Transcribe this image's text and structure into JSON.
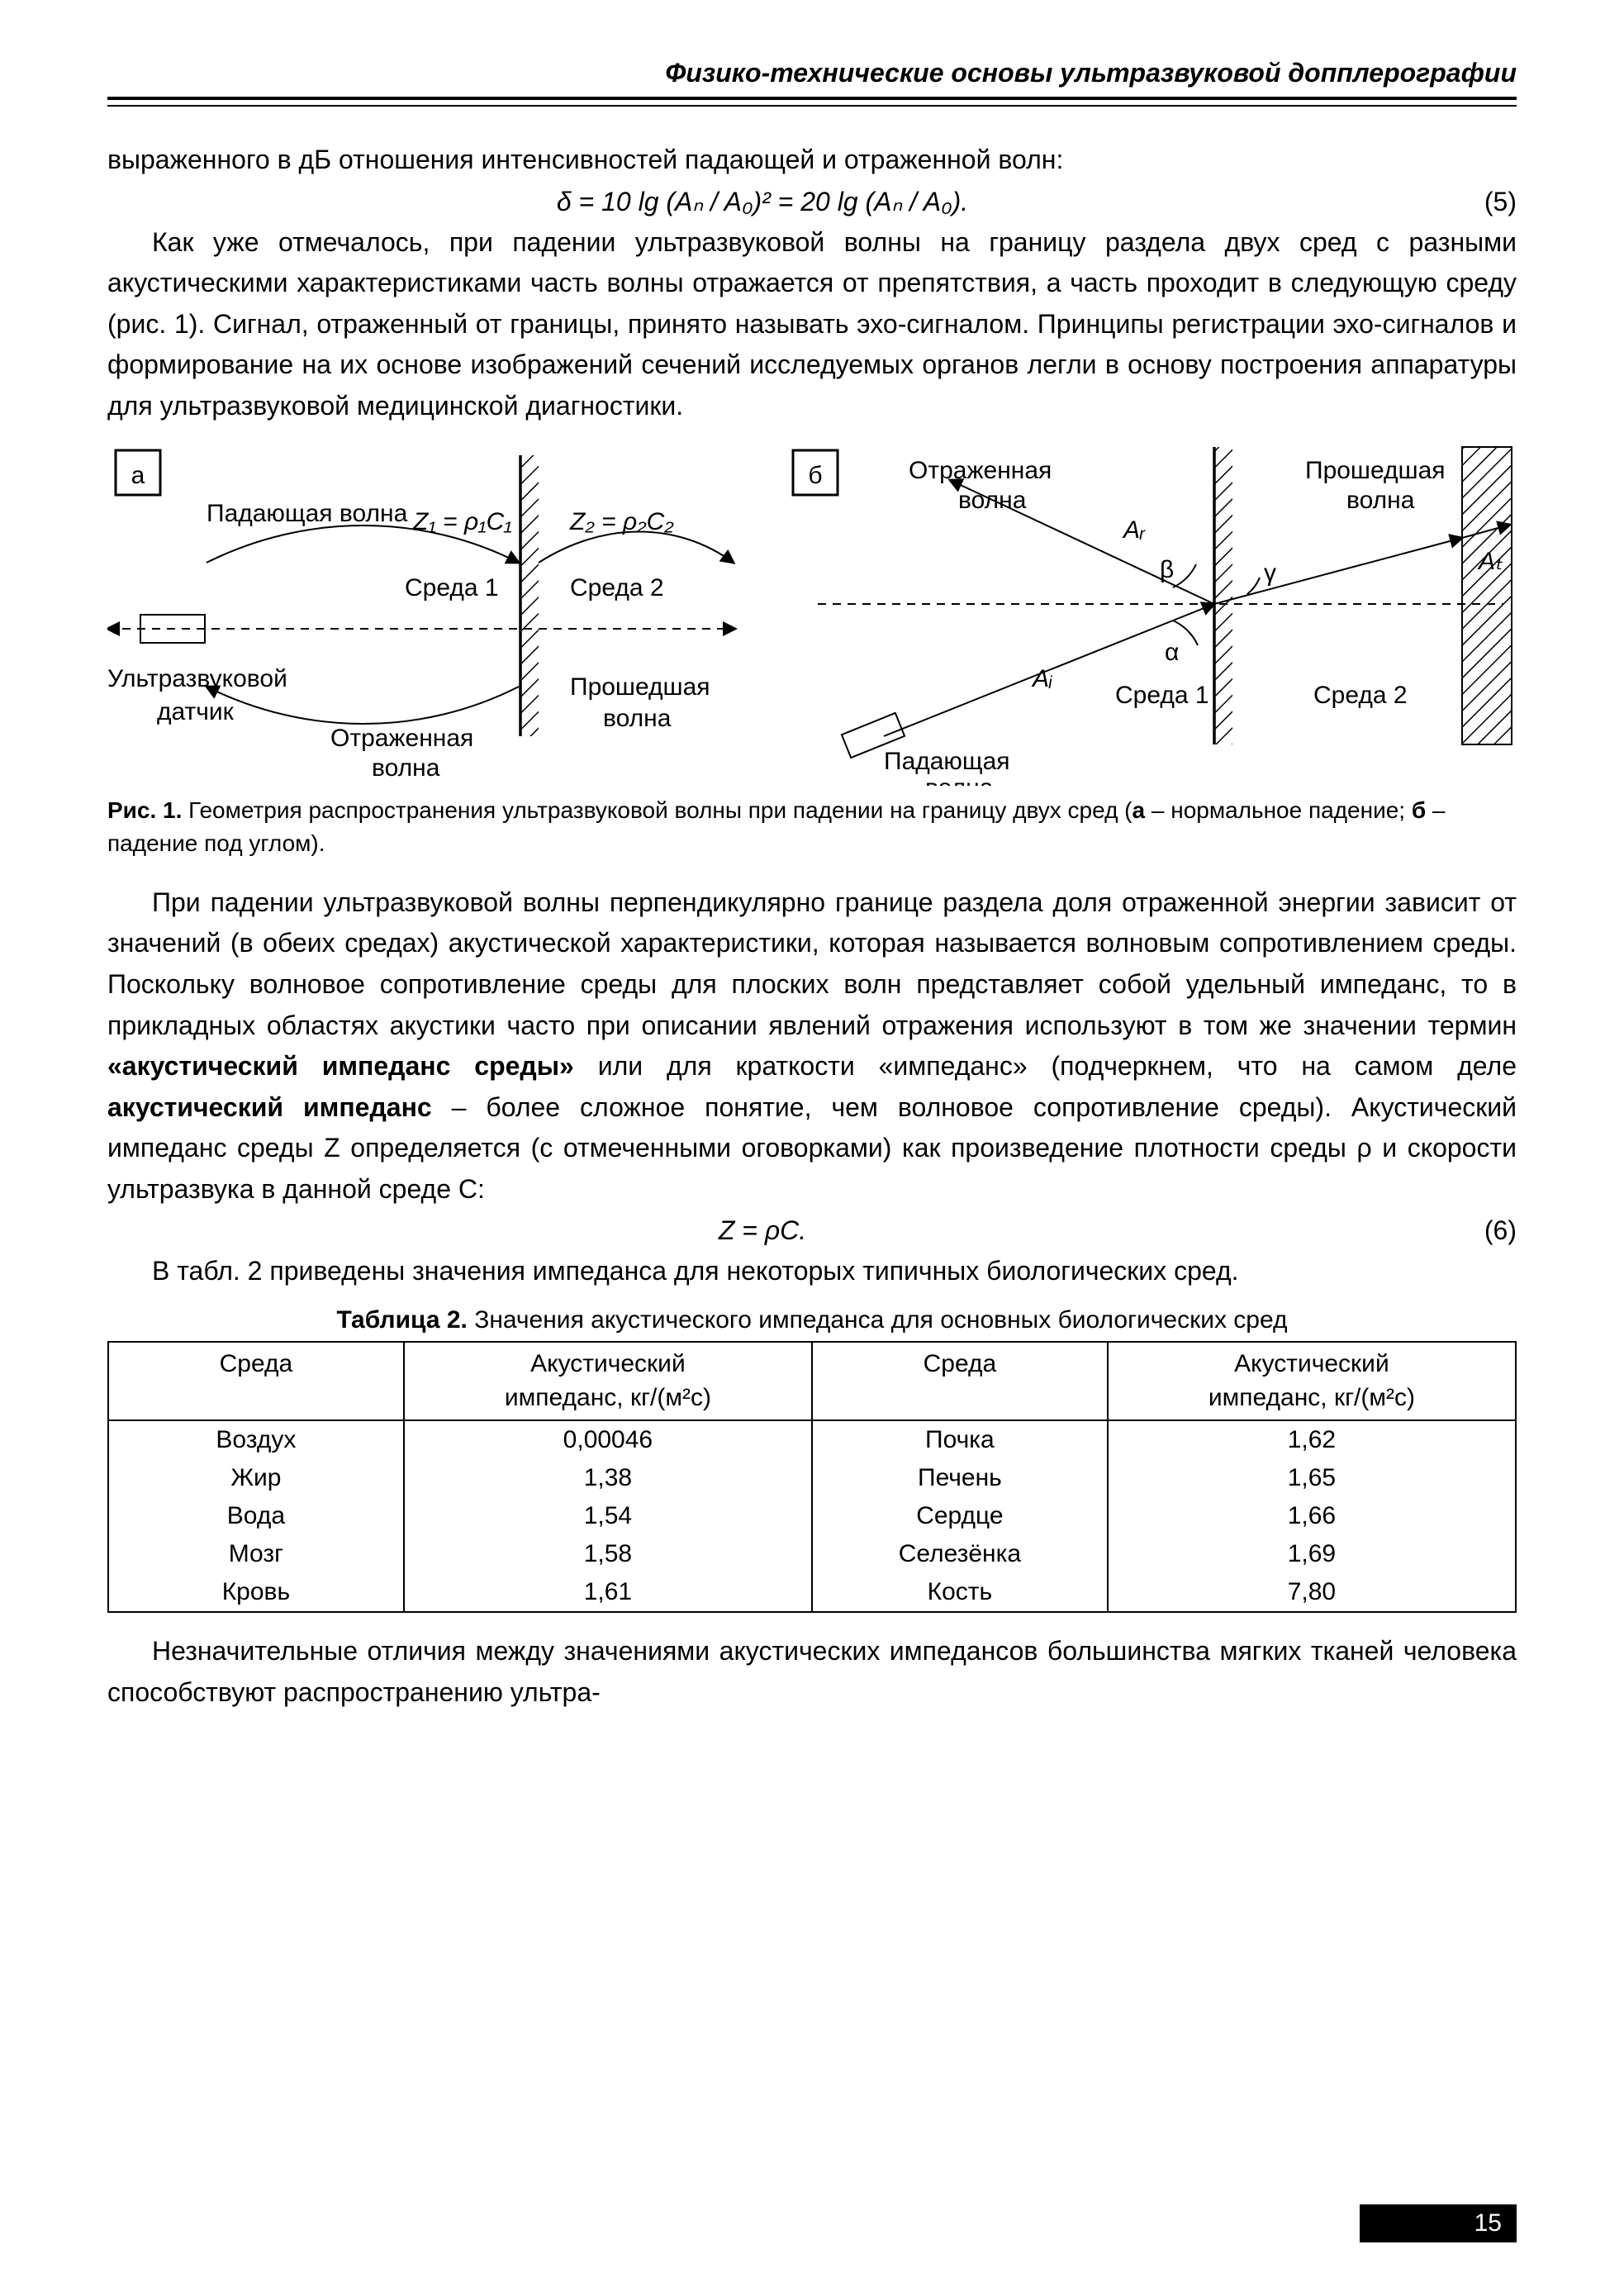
{
  "header": {
    "running_title": "Физико-технические основы ультразвуковой допплерографии"
  },
  "page_number": "15",
  "para1": "выраженного в дБ отношения интенсивностей падающей и отраженной волн:",
  "eq5": {
    "text": "δ = 10 lg (Aₙ / A₀)² = 20 lg (Aₙ / A₀).",
    "num": "(5)"
  },
  "para2": "Как уже отмечалось, при падении ультразвуковой волны на границу раздела двух сред с разными акустическими характеристиками часть волны отражается от препятствия, а часть проходит в следующую среду (рис. 1). Сигнал, отраженный от границы, принято называть эхо-сигналом. Принципы регистрации эхо-сигналов и формирование на их основе изображений сечений исследуемых органов легли в основу построения аппаратуры для ультразвуковой медицинской диагностики.",
  "figure1": {
    "panel_a": "а",
    "panel_b": "б",
    "labels": {
      "incident": "Падающая волна",
      "reflected": "Отраженная\nволна",
      "transmitted": "Прошедшая\nволна",
      "transducer": "Ультразвуковой\nдатчик",
      "medium1": "Среда 1",
      "medium2": "Среда 2",
      "z1": "Z₁ = ρ₁C₁",
      "z2": "Z₂ = ρ₂C₂",
      "Ai": "Aᵢ",
      "Ar": "Aᵣ",
      "At": "Aₜ",
      "alpha": "α",
      "beta": "β",
      "gamma": "γ"
    },
    "caption_strong": "Рис. 1.",
    "caption_rest": " Геометрия распространения ультразвуковой волны при падении на границу двух сред (",
    "caption_a": "а",
    "caption_mid": " – нормальное падение; ",
    "caption_b": "б",
    "caption_end": " – падение под углом)."
  },
  "para3": "При падении ультразвуковой волны перпендикулярно границе раздела доля отраженной энергии зависит от значений (в обеих средах) акустической характеристики, которая называется волновым сопротивлением среды. Поскольку волновое сопротивление среды для плоских волн представляет собой удельный импеданс, то в прикладных областях акустики часто при описании явлений отражения используют в том же значении термин ",
  "para3_b1": "«акустический импеданс среды»",
  "para3_mid": " или для краткости «импеданс» (подчеркнем, что на самом деле ",
  "para3_b2": "акустический импеданс",
  "para3_end": " – более сложное понятие, чем волновое сопротивление среды). Акустический импеданс среды Z определяется (с отмеченными оговорками) как произведение плотности среды ρ и скорости ультразвука в данной среде C:",
  "eq6": {
    "text": "Z = ρC.",
    "num": "(6)"
  },
  "para4": "В табл. 2 приведены значения импеданса для некоторых типичных биологических сред.",
  "table2": {
    "caption_strong": "Таблица 2.",
    "caption_rest": " Значения акустического импеданса для основных биологических сред",
    "col_medium": "Среда",
    "col_imp_l1": "Акустический",
    "col_imp_l2": "импеданс, кг/(м²с)",
    "rows": [
      {
        "m1": "Воздух",
        "v1": "0,00046",
        "m2": "Почка",
        "v2": "1,62"
      },
      {
        "m1": "Жир",
        "v1": "1,38",
        "m2": "Печень",
        "v2": "1,65"
      },
      {
        "m1": "Вода",
        "v1": "1,54",
        "m2": "Сердце",
        "v2": "1,66"
      },
      {
        "m1": "Мозг",
        "v1": "1,58",
        "m2": "Селезёнка",
        "v2": "1,69"
      },
      {
        "m1": "Кровь",
        "v1": "1,61",
        "m2": "Кость",
        "v2": "7,80"
      }
    ]
  },
  "para5": "Незначительные отличия между значениями акустических импедансов большинства мягких тканей человека способствуют распространению ультра-"
}
